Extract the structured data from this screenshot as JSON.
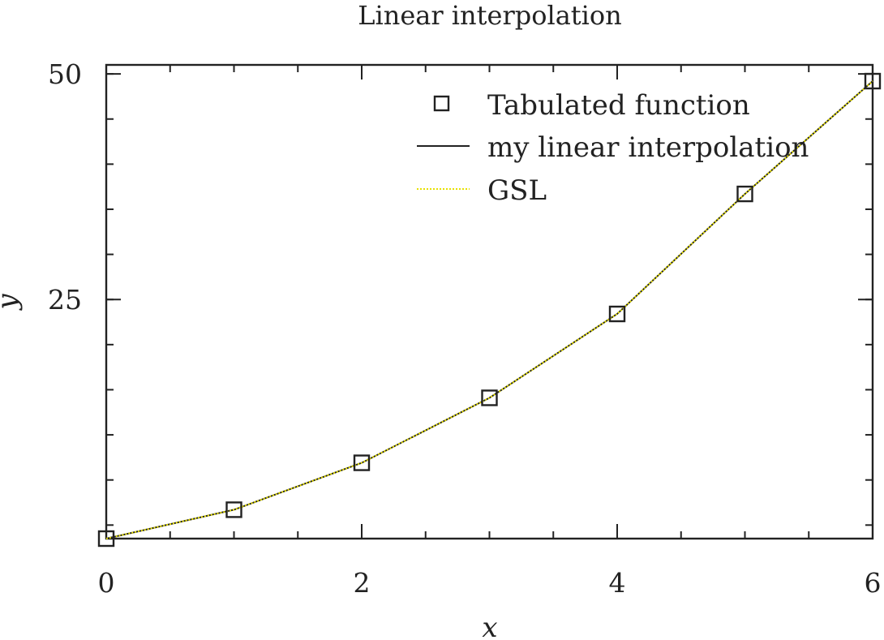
{
  "chart_data": {
    "type": "line",
    "title": "Linear interpolation",
    "xlabel": "x",
    "ylabel": "y",
    "xlim": [
      0,
      6
    ],
    "ylim": [
      -1.5,
      51
    ],
    "x_ticks": [
      0,
      2,
      4,
      6
    ],
    "y_ticks": [
      25,
      50
    ],
    "x_minor_step": 0.5,
    "y_minor_step": 5,
    "grid": false,
    "legend_position": "top-right",
    "series": [
      {
        "name": "Tabulated function",
        "style": "markers",
        "marker": "open-square",
        "color": "#222222",
        "x": [
          0,
          1,
          2,
          3,
          4,
          5,
          6
        ],
        "y": [
          -1.5,
          1.7,
          6.9,
          14.1,
          23.4,
          36.7,
          49.2
        ]
      },
      {
        "name": "my linear interpolation",
        "style": "solid-line",
        "color": "#222222",
        "x": [
          0,
          1,
          2,
          3,
          4,
          5,
          6
        ],
        "y": [
          -1.5,
          1.7,
          6.9,
          14.1,
          23.4,
          36.7,
          49.2
        ]
      },
      {
        "name": "GSL",
        "style": "dotted-line",
        "color": "#e8e000",
        "x": [
          0,
          1,
          2,
          3,
          4,
          5,
          6
        ],
        "y": [
          -1.5,
          1.7,
          6.9,
          14.1,
          23.4,
          36.7,
          49.2
        ]
      }
    ]
  }
}
